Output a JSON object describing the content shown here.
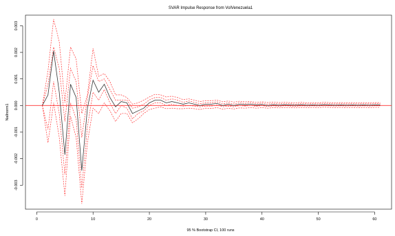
{
  "chart_data": {
    "type": "line",
    "title": "SVAR Impulse Response from VolVenezuela1",
    "xlabel": "95 % Bootstrap CI, 100 runs",
    "ylabel": "Nallnorm1",
    "xlim": [
      -2,
      63
    ],
    "ylim": [
      -0.0039,
      0.0034
    ],
    "x_ticks": [
      0,
      10,
      20,
      30,
      40,
      50,
      60
    ],
    "y_ticks": [
      -0.003,
      -0.002,
      -0.001,
      0.0,
      0.001,
      0.002,
      0.003
    ],
    "x_tick_labels": [
      "0",
      "10",
      "20",
      "30",
      "40",
      "50",
      "60"
    ],
    "y_tick_labels": [
      "-0.003",
      "-0.002",
      "-0.001",
      "0.000",
      "0.001",
      "0.002",
      "0.003"
    ],
    "zero_line": 0,
    "grid": false,
    "colors": {
      "irf": "#333333",
      "ci": "#ff3030",
      "zero": "#ff3030"
    },
    "x": [
      1,
      2,
      3,
      4,
      5,
      6,
      7,
      8,
      9,
      10,
      11,
      12,
      13,
      14,
      15,
      16,
      17,
      18,
      19,
      20,
      21,
      22,
      23,
      24,
      25,
      26,
      27,
      28,
      29,
      30,
      31,
      32,
      33,
      34,
      35,
      36,
      37,
      38,
      39,
      40,
      41,
      42,
      43,
      44,
      45,
      46,
      47,
      48,
      49,
      50,
      51,
      52,
      53,
      54,
      55,
      56,
      57,
      58,
      59,
      60,
      61
    ],
    "series": [
      {
        "values": [
          0,
          0.0004,
          0.00205,
          0.0005,
          -0.00185,
          0.0008,
          0.0003,
          -0.00245,
          -0.0001,
          0.00095,
          0.0005,
          0.0008,
          0.0003,
          -5e-05,
          0.00015,
          0.0001,
          -0.0003,
          -0.0002,
          -0.0001,
          0.0001,
          0.0002,
          0.0002,
          0.0001,
          0.00015,
          0.0001,
          5e-05,
          0.0001,
          5e-05,
          0,
          5e-05,
          5e-05,
          8e-05,
          0,
          5e-05,
          0,
          5e-05,
          3e-05,
          5e-05,
          2e-05,
          4e-05,
          0,
          3e-05,
          1e-05,
          3e-05,
          2e-05,
          1e-05,
          3e-05,
          1e-05,
          2e-05,
          1e-05,
          3e-05,
          2e-05,
          1e-05,
          2e-05,
          1e-05,
          2e-05,
          1e-05,
          2e-05,
          1e-05,
          2e-05,
          2e-05
        ]
      },
      {
        "values": [
          0,
          0.0013,
          0.00325,
          0.0024,
          0.0001,
          0.0022,
          0.00175,
          -0.0003,
          0.0004,
          0.00215,
          0.0011,
          0.0012,
          0.0009,
          0.0004,
          0.0004,
          0.0003,
          5e-05,
          0.0001,
          0.0002,
          0.00032,
          0.00042,
          0.0004,
          0.00032,
          0.00035,
          0.0003,
          0.00022,
          0.00025,
          0.0002,
          0.00015,
          0.00018,
          0.00018,
          0.0002,
          0.00014,
          0.00017,
          0.00013,
          0.00016,
          0.00014,
          0.00015,
          0.00012,
          0.00014,
          0.00011,
          0.00013,
          0.00011,
          0.00012,
          0.00011,
          0.0001,
          0.00012,
          0.0001,
          0.00011,
          0.0001,
          0.00012,
          0.00011,
          0.0001,
          0.00011,
          0.0001,
          0.00011,
          0.0001,
          0.00011,
          0.0001,
          0.00011,
          0.00011
        ]
      },
      {
        "values": [
          0,
          -0.0014,
          0.0001,
          -0.0012,
          -0.0034,
          -0.0004,
          -0.0012,
          -0.0037,
          -0.0014,
          -0.0001,
          -0.0003,
          0.0001,
          -0.0002,
          -0.0006,
          -0.0003,
          -0.0003,
          -0.00065,
          -0.0005,
          -0.0003,
          -0.00015,
          -0.0001,
          -5e-05,
          -0.00012,
          -0.0001,
          -0.00012,
          -0.00012,
          -0.0001,
          -0.00012,
          -0.00015,
          -0.0001,
          -0.00011,
          -8e-05,
          -0.00014,
          -0.0001,
          -0.00013,
          -9e-05,
          -0.0001,
          -8e-05,
          -0.0001,
          -8e-05,
          -0.0001,
          -8e-05,
          -9e-05,
          -8e-05,
          -8e-05,
          -9e-05,
          -7e-05,
          -8e-05,
          -7e-05,
          -8e-05,
          -6e-05,
          -7e-05,
          -8e-05,
          -7e-05,
          -8e-05,
          -7e-05,
          -8e-05,
          -7e-05,
          -8e-05,
          -7e-05,
          -7e-05
        ]
      },
      {
        "values": [
          0,
          0.0008,
          0.0022,
          0.0014,
          -0.0006,
          0.0014,
          0.0009,
          -0.0012,
          0.0003,
          0.0015,
          0.0009,
          0.001,
          0.0006,
          0.0002,
          0.0002,
          0.0002,
          -0.0001,
          -5e-05,
          5e-05,
          0.00021,
          0.0003,
          0.0003,
          0.0002,
          0.00025,
          0.0002,
          0.00012,
          0.00017,
          0.00012,
          7e-05,
          0.0001,
          0.0001,
          0.00014,
          6e-05,
          0.0001,
          6e-05,
          0.0001,
          8e-05,
          0.0001,
          7e-05,
          9e-05,
          5e-05,
          8e-05,
          6e-05,
          8e-05,
          7e-05,
          5e-05,
          8e-05,
          6e-05,
          7e-05,
          6e-05,
          8e-05,
          7e-05,
          6e-05,
          7e-05,
          6e-05,
          7e-05,
          6e-05,
          7e-05,
          6e-05,
          7e-05,
          7e-05
        ]
      },
      {
        "values": [
          0,
          -0.0009,
          0.0009,
          -0.0003,
          -0.0026,
          0.0001,
          -0.0005,
          -0.0031,
          -0.0008,
          0.0005,
          0.0002,
          0.0006,
          0.0001,
          -0.0003,
          0,
          -0.0001,
          -0.0005,
          -0.0003,
          -0.0002,
          0,
          0.0001,
          0.0001,
          0,
          5e-05,
          0,
          -2e-05,
          0,
          -2e-05,
          -5e-05,
          -2e-05,
          -2e-05,
          2e-05,
          -5e-05,
          -2e-05,
          -5e-05,
          0,
          -2e-05,
          0,
          -3e-05,
          0,
          -4e-05,
          -1e-05,
          -3e-05,
          -1e-05,
          -2e-05,
          -3e-05,
          -1e-05,
          -2e-05,
          -1e-05,
          -2e-05,
          0,
          -1e-05,
          -2e-05,
          -1e-05,
          -2e-05,
          -1e-05,
          -2e-05,
          -1e-05,
          -2e-05,
          -1e-05,
          -1e-05
        ]
      }
    ]
  }
}
